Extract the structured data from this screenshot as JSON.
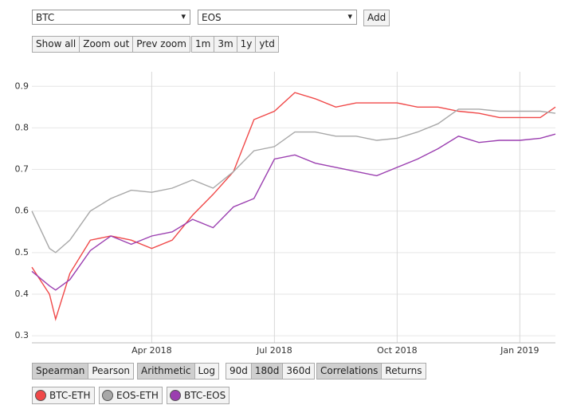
{
  "controls": {
    "asset_a": "BTC",
    "asset_b": "EOS",
    "add": "Add",
    "zoom": [
      "Show all",
      "Zoom out",
      "Prev zoom"
    ],
    "ranges": [
      "1m",
      "3m",
      "1y",
      "ytd"
    ],
    "method": [
      "Spearman",
      "Pearson"
    ],
    "scale": [
      "Arithmetic",
      "Log"
    ],
    "window": [
      "90d",
      "180d",
      "360d"
    ],
    "view": [
      "Correlations",
      "Returns"
    ]
  },
  "chart_data": {
    "type": "line",
    "x": [
      0.07,
      0.5,
      0.65,
      1,
      1.5,
      2,
      2.5,
      3,
      3.5,
      4,
      4.5,
      5,
      5.5,
      6,
      6.5,
      7,
      7.5,
      8,
      8.5,
      9,
      9.5,
      10,
      10.5,
      11,
      11.5,
      12,
      12.5,
      12.87
    ],
    "xlim": [
      0.07,
      12.87
    ],
    "xticks": [
      {
        "value": 3,
        "label": "Apr 2018"
      },
      {
        "value": 6,
        "label": "Jul 2018"
      },
      {
        "value": 9,
        "label": "Oct 2018"
      },
      {
        "value": 12,
        "label": "Jan 2019"
      }
    ],
    "ylim": [
      0.283,
      0.935
    ],
    "yticks": [
      0.3,
      0.4,
      0.5,
      0.6,
      0.7,
      0.8,
      0.9
    ],
    "grid": true,
    "series": [
      {
        "name": "BTC-ETH",
        "color": "#f04848",
        "values": [
          0.465,
          0.4,
          0.34,
          0.45,
          0.53,
          0.54,
          0.53,
          0.51,
          0.53,
          0.59,
          0.64,
          0.695,
          0.82,
          0.84,
          0.885,
          0.87,
          0.85,
          0.86,
          0.86,
          0.86,
          0.85,
          0.85,
          0.84,
          0.835,
          0.825,
          0.825,
          0.825,
          0.85
        ]
      },
      {
        "name": "EOS-ETH",
        "color": "#a8a8a8",
        "values": [
          0.6,
          0.51,
          0.5,
          0.53,
          0.6,
          0.63,
          0.65,
          0.645,
          0.655,
          0.675,
          0.655,
          0.695,
          0.745,
          0.755,
          0.79,
          0.79,
          0.78,
          0.78,
          0.77,
          0.775,
          0.79,
          0.81,
          0.845,
          0.845,
          0.84,
          0.84,
          0.84,
          0.835
        ]
      },
      {
        "name": "BTC-EOS",
        "color": "#9b3fb0",
        "values": [
          0.455,
          0.42,
          0.41,
          0.435,
          0.505,
          0.54,
          0.52,
          0.54,
          0.55,
          0.58,
          0.56,
          0.61,
          0.63,
          0.725,
          0.735,
          0.715,
          0.705,
          0.695,
          0.685,
          0.705,
          0.725,
          0.75,
          0.78,
          0.765,
          0.77,
          0.77,
          0.775,
          0.785
        ]
      }
    ]
  }
}
